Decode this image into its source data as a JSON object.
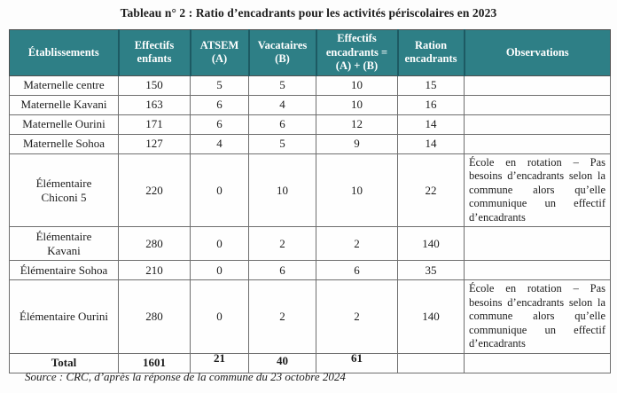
{
  "title": "Tableau n° 2 : Ratio d’encadrants pour les activités périscolaires en 2023",
  "table": {
    "columns": [
      "Établissements",
      "Effectifs enfants",
      "ATSEM (A)",
      "Vacataires (B)",
      "Effectifs encadrants = (A) + (B)",
      "Ration encadrants",
      "Observations"
    ],
    "rows": [
      {
        "name": "Maternelle centre",
        "effectifs": "150",
        "atsem": "5",
        "vacataires": "5",
        "encadrants": "10",
        "ration": "15",
        "observation": ""
      },
      {
        "name": "Maternelle Kavani",
        "effectifs": "163",
        "atsem": "6",
        "vacataires": "4",
        "encadrants": "10",
        "ration": "16",
        "observation": ""
      },
      {
        "name": "Maternelle Ourini",
        "effectifs": "171",
        "atsem": "6",
        "vacataires": "6",
        "encadrants": "12",
        "ration": "14",
        "observation": ""
      },
      {
        "name": "Maternelle Sohoa",
        "effectifs": "127",
        "atsem": "4",
        "vacataires": "5",
        "encadrants": "9",
        "ration": "14",
        "observation": ""
      },
      {
        "name": "Élémentaire\nChiconi 5",
        "effectifs": "220",
        "atsem": "0",
        "vacataires": "10",
        "encadrants": "10",
        "ration": "22",
        "observation": "École en rotation – Pas besoins d’encadrants selon la commune alors qu’elle communique un effectif d’encadrants"
      },
      {
        "name": "Élémentaire\nKavani",
        "effectifs": "280",
        "atsem": "0",
        "vacataires": "2",
        "encadrants": "2",
        "ration": "140",
        "observation": ""
      },
      {
        "name": "Élémentaire Sohoa",
        "effectifs": "210",
        "atsem": "0",
        "vacataires": "6",
        "encadrants": "6",
        "ration": "35",
        "observation": ""
      },
      {
        "name": "Élémentaire Ourini",
        "effectifs": "280",
        "atsem": "0",
        "vacataires": "2",
        "encadrants": "2",
        "ration": "140",
        "observation": "École en rotation – Pas besoins d’encadrants selon la commune alors qu’elle communique un effectif d’encadrants"
      }
    ],
    "total": {
      "name": "Total",
      "effectifs": "1601",
      "atsem": "21",
      "vacataires": "40",
      "encadrants": "61",
      "ration": "",
      "observation": ""
    }
  },
  "source": "Source : CRC, d’après la réponse de la commune du 23 octobre 2024",
  "colors": {
    "header_bg": "#2e7f86",
    "header_separator": "#1d5a63",
    "header_text": "#ffffff",
    "border": "#6e6e6e",
    "text": "#1c1c1c",
    "background": "#fdfdfd"
  }
}
